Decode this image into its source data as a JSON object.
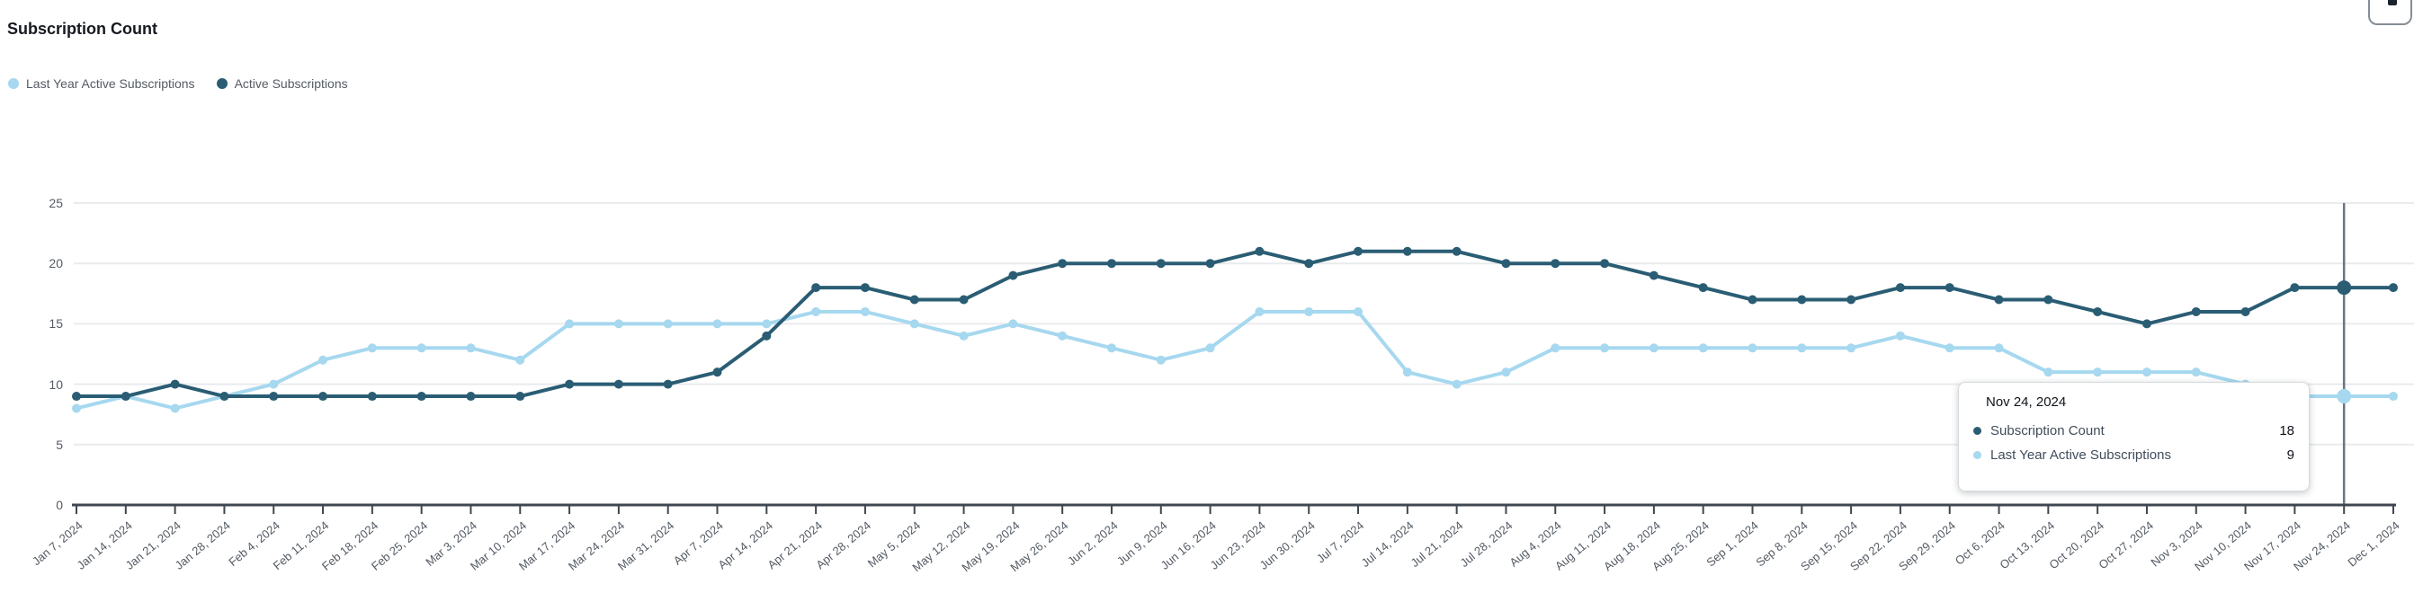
{
  "header": {
    "title": "Subscription Count"
  },
  "legend": {
    "items": [
      {
        "label": "Last Year Active Subscriptions",
        "color": "#a6d8ef"
      },
      {
        "label": "Active Subscriptions",
        "color": "#2a5d74"
      }
    ]
  },
  "chart_data": {
    "type": "line",
    "title": "Subscription Count",
    "xlabel": "",
    "ylabel": "",
    "ylim": [
      0,
      25
    ],
    "yticks": [
      0,
      5,
      10,
      15,
      20,
      25
    ],
    "grid": true,
    "legend_position": "top-left",
    "x": [
      "Jan 7, 2024",
      "Jan 14, 2024",
      "Jan 21, 2024",
      "Jan 28, 2024",
      "Feb 4, 2024",
      "Feb 11, 2024",
      "Feb 18, 2024",
      "Feb 25, 2024",
      "Mar 3, 2024",
      "Mar 10, 2024",
      "Mar 17, 2024",
      "Mar 24, 2024",
      "Mar 31, 2024",
      "Apr 7, 2024",
      "Apr 14, 2024",
      "Apr 21, 2024",
      "Apr 28, 2024",
      "May 5, 2024",
      "May 12, 2024",
      "May 19, 2024",
      "May 26, 2024",
      "Jun 2, 2024",
      "Jun 9, 2024",
      "Jun 16, 2024",
      "Jun 23, 2024",
      "Jun 30, 2024",
      "Jul 7, 2024",
      "Jul 14, 2024",
      "Jul 21, 2024",
      "Jul 28, 2024",
      "Aug 4, 2024",
      "Aug 11, 2024",
      "Aug 18, 2024",
      "Aug 25, 2024",
      "Sep 1, 2024",
      "Sep 8, 2024",
      "Sep 15, 2024",
      "Sep 22, 2024",
      "Sep 29, 2024",
      "Oct 6, 2024",
      "Oct 13, 2024",
      "Oct 20, 2024",
      "Oct 27, 2024",
      "Nov 3, 2024",
      "Nov 10, 2024",
      "Nov 17, 2024",
      "Nov 24, 2024",
      "Dec 1, 2024"
    ],
    "series": [
      {
        "name": "Last Year Active Subscriptions",
        "color": "#a6d8ef",
        "values": [
          8,
          9,
          8,
          9,
          10,
          12,
          13,
          13,
          13,
          12,
          15,
          15,
          15,
          15,
          15,
          16,
          16,
          15,
          14,
          15,
          14,
          13,
          12,
          13,
          16,
          16,
          16,
          11,
          10,
          11,
          13,
          13,
          13,
          13,
          13,
          13,
          13,
          14,
          13,
          13,
          11,
          11,
          11,
          11,
          10,
          9,
          9,
          9
        ]
      },
      {
        "name": "Active Subscriptions",
        "color": "#2a5d74",
        "values": [
          9,
          9,
          10,
          9,
          9,
          9,
          9,
          9,
          9,
          9,
          10,
          10,
          10,
          11,
          14,
          18,
          18,
          17,
          17,
          19,
          20,
          20,
          20,
          20,
          21,
          20,
          21,
          21,
          21,
          20,
          20,
          20,
          19,
          18,
          17,
          17,
          17,
          18,
          18,
          17,
          17,
          16,
          15,
          16,
          16,
          18,
          18,
          18
        ]
      }
    ],
    "highlighted_x": "Nov 24, 2024",
    "highlighted_index": 46
  },
  "tooltip": {
    "date": "Nov 24, 2024",
    "rows": [
      {
        "label": "Subscription Count",
        "value": "18",
        "color": "#2a5d74"
      },
      {
        "label": "Last Year Active Subscriptions",
        "value": "9",
        "color": "#a6d8ef"
      }
    ]
  },
  "colors": {
    "grid": "#e9ebed",
    "axis": "#3f4750",
    "tick_label": "#545b64",
    "crosshair": "#6b7580",
    "background": "#ffffff"
  }
}
